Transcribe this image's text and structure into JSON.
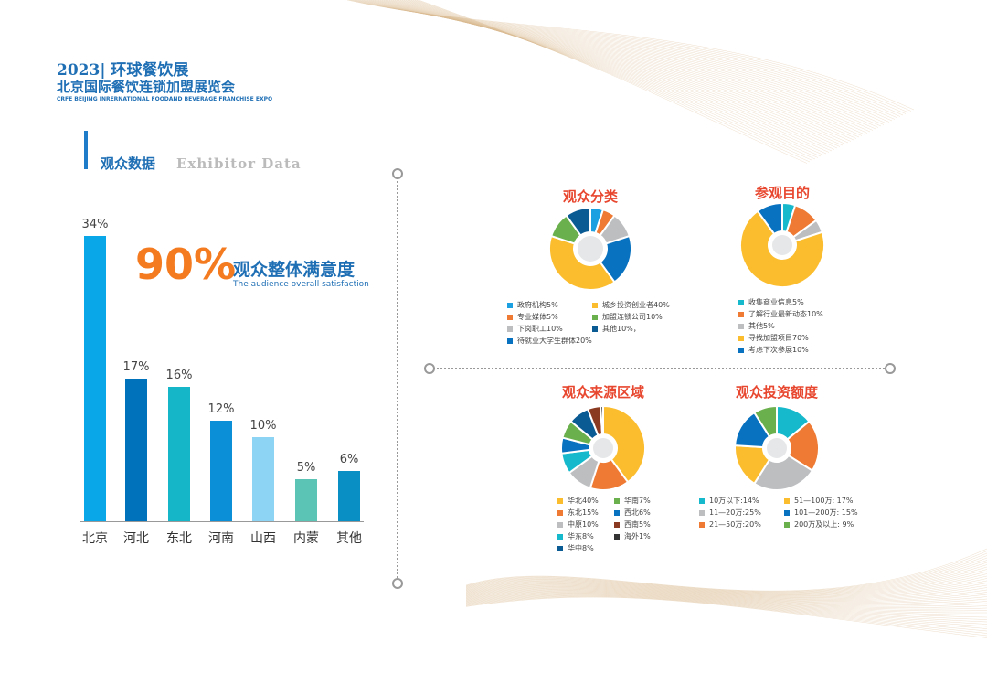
{
  "header": {
    "line1": "2023| 环球餐饮展",
    "line2": "北京国际餐饮连锁加盟展览会",
    "line3": "CRFE BEIJING INRERNATIONAL FOODAND BEVERAGE FRANCHISE EXPO"
  },
  "section": {
    "title": "观众数据",
    "subtitle": "Exhibitor Data"
  },
  "satisfaction": {
    "value": "90%",
    "label": "观众整体满意度",
    "sublabel": "The audience overall satisfaction"
  },
  "chart_data": [
    {
      "type": "bar",
      "categories": [
        "北京",
        "河北",
        "东北",
        "河南",
        "山西",
        "内蒙",
        "其他"
      ],
      "values": [
        34,
        17,
        16,
        12,
        10,
        5,
        6
      ],
      "labels": [
        "34%",
        "17%",
        "16%",
        "12%",
        "10%",
        "5%",
        "6%"
      ],
      "colors": [
        "#0aa7e8",
        "#0072bc",
        "#14b6c8",
        "#0b8fd6",
        "#8dd3f3",
        "#5cc4b4",
        "#0a8fc5"
      ]
    },
    {
      "type": "pie",
      "title": "观众分类",
      "slices": [
        {
          "label": "政府机构5%",
          "value": 5,
          "color": "#1ba1e2"
        },
        {
          "label": "专业媒体5%",
          "value": 5,
          "color": "#ee7a33"
        },
        {
          "label": "下岗职工10%",
          "value": 10,
          "color": "#bcbec0"
        },
        {
          "label": "待就业大学生群体20%",
          "value": 20,
          "color": "#0872c0"
        },
        {
          "label": "城乡投资创业者40%",
          "value": 40,
          "color": "#fbbd2e"
        },
        {
          "label": "加盟连锁公司10%",
          "value": 10,
          "color": "#6ab04c"
        },
        {
          "label": "其他10%，",
          "value": 10,
          "color": "#0a5a94"
        }
      ],
      "legend_order": [
        0,
        4,
        1,
        5,
        2,
        6,
        3
      ]
    },
    {
      "type": "pie",
      "title": "参观目的",
      "slices": [
        {
          "label": "收集商业信息5%",
          "value": 5,
          "color": "#15b9cb"
        },
        {
          "label": "了解行业最新动态10%",
          "value": 10,
          "color": "#ee7a33"
        },
        {
          "label": "其他5%",
          "value": 5,
          "color": "#bcbec0"
        },
        {
          "label": "寻找加盟项目70%",
          "value": 70,
          "color": "#fbbd2e"
        },
        {
          "label": "考虑下次参展10%",
          "value": 10,
          "color": "#0872c0"
        }
      ],
      "legend_order": [
        0,
        1,
        2,
        3,
        4
      ]
    },
    {
      "type": "pie",
      "title": "观众来源区域",
      "slices": [
        {
          "label": "华北40%",
          "value": 40,
          "color": "#fbbd2e"
        },
        {
          "label": "东北15%",
          "value": 15,
          "color": "#ee7a33"
        },
        {
          "label": "中原10%",
          "value": 10,
          "color": "#bcbec0"
        },
        {
          "label": "华东8%",
          "value": 8,
          "color": "#15b9cb"
        },
        {
          "label": "西北6%",
          "value": 6,
          "color": "#0872c0"
        },
        {
          "label": "华南7%",
          "value": 7,
          "color": "#6ab04c"
        },
        {
          "label": "华中8%",
          "value": 8,
          "color": "#0a5a94"
        },
        {
          "label": "西南5%",
          "value": 5,
          "color": "#8b3a22"
        },
        {
          "label": "海外1%",
          "value": 1,
          "color": "#333333"
        }
      ],
      "legend_order": [
        0,
        5,
        1,
        4,
        2,
        7,
        3,
        8,
        6
      ]
    },
    {
      "type": "pie",
      "title": "观众投资额度",
      "slices": [
        {
          "label": "10万以下:14%",
          "value": 14,
          "color": "#15b9cb"
        },
        {
          "label": "21—50万:20%",
          "value": 20,
          "color": "#ee7a33"
        },
        {
          "label": "11—20万:25%",
          "value": 25,
          "color": "#bcbec0"
        },
        {
          "label": "51—100万: 17%",
          "value": 17,
          "color": "#fbbd2e"
        },
        {
          "label": "101—200万: 15%",
          "value": 15,
          "color": "#0872c0"
        },
        {
          "label": "200万及以上: 9%",
          "value": 9,
          "color": "#6ab04c"
        }
      ],
      "legend_order": [
        0,
        3,
        2,
        4,
        1,
        5
      ]
    }
  ]
}
